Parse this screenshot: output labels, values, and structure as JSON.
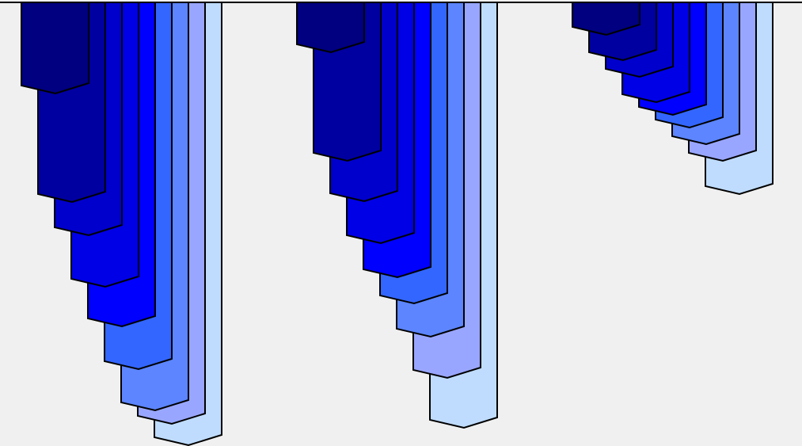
{
  "chart_data": {
    "type": "bar",
    "orientation": "downward",
    "style": "stacked-3d-columns",
    "title": "",
    "xlabel": "",
    "ylabel": "",
    "grid": false,
    "legend": "none",
    "y_scale": 563,
    "groups": [
      {
        "columns": [
          {
            "value": 118,
            "color": "#000080"
          },
          {
            "value": 255,
            "color": "#0000a0"
          },
          {
            "value": 297,
            "color": "#0000cc"
          },
          {
            "value": 362,
            "color": "#0000e6"
          },
          {
            "value": 412,
            "color": "#0000ff"
          },
          {
            "value": 466,
            "color": "#3366ff"
          },
          {
            "value": 518,
            "color": "#5c85ff"
          },
          {
            "value": 535,
            "color": "#99a6ff"
          },
          {
            "value": 562,
            "color": "#bfdcff"
          }
        ]
      },
      {
        "columns": [
          {
            "value": 66,
            "color": "#000080"
          },
          {
            "value": 203,
            "color": "#0000a0"
          },
          {
            "value": 254,
            "color": "#0000cc"
          },
          {
            "value": 307,
            "color": "#0000e6"
          },
          {
            "value": 350,
            "color": "#0000ff"
          },
          {
            "value": 383,
            "color": "#3366ff"
          },
          {
            "value": 425,
            "color": "#5c85ff"
          },
          {
            "value": 477,
            "color": "#99a6ff"
          },
          {
            "value": 540,
            "color": "#bfdcff"
          }
        ]
      },
      {
        "columns": [
          {
            "value": 44,
            "color": "#000080"
          },
          {
            "value": 76,
            "color": "#0000a0"
          },
          {
            "value": 97,
            "color": "#0000cc"
          },
          {
            "value": 129,
            "color": "#0000e6"
          },
          {
            "value": 145,
            "color": "#0000ff"
          },
          {
            "value": 161,
            "color": "#3366ff"
          },
          {
            "value": 182,
            "color": "#5c85ff"
          },
          {
            "value": 203,
            "color": "#99a6ff"
          },
          {
            "value": 245,
            "color": "#bfdcff"
          }
        ]
      }
    ]
  }
}
